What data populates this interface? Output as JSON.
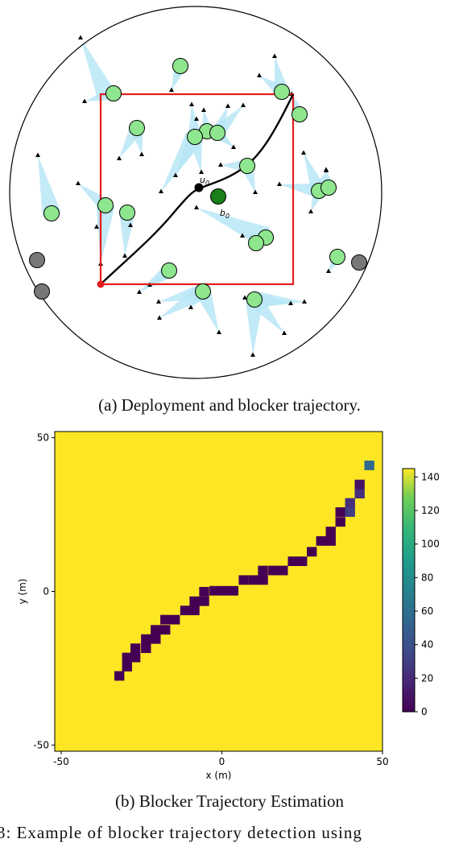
{
  "figure_a": {
    "caption": "(a) Deployment and blocker trajectory.",
    "labels": {
      "user": "u",
      "user_sub": "0",
      "bs": "b",
      "bs_sub": "0"
    },
    "colors": {
      "region": "#e51c1c",
      "trajectory": "#000000",
      "bs": "#8ee68e",
      "bs_target": "#1a7f1a",
      "bs_inactive": "#777777",
      "beam": "#b9e6f6"
    }
  },
  "figure_b": {
    "caption": "(b) Blocker Trajectory Estimation",
    "figure_caption_partial": "3: Example of blocker trajectory detection using"
  },
  "chart_data": {
    "type": "heatmap",
    "title": "",
    "xlabel": "x (m)",
    "ylabel": "y (m)",
    "xlim": [
      -52,
      50
    ],
    "ylim": [
      -52,
      52
    ],
    "x_ticks": [
      -50,
      0,
      50
    ],
    "y_ticks": [
      50,
      0,
      -50
    ],
    "colorbar": {
      "min": 0,
      "max": 145,
      "ticks": [
        0,
        20,
        40,
        60,
        80,
        100,
        120,
        140
      ],
      "colormap": "viridis"
    },
    "background_value": 145,
    "cell_size_m": 3.1,
    "cells": [
      {
        "x": -31.9,
        "y": -27.5,
        "v": 0
      },
      {
        "x": -29.5,
        "y": -24.5,
        "v": 0
      },
      {
        "x": -29.5,
        "y": -21.5,
        "v": 0
      },
      {
        "x": -26.9,
        "y": -21.5,
        "v": 0
      },
      {
        "x": -26.9,
        "y": -18.5,
        "v": 0
      },
      {
        "x": -23.6,
        "y": -18.5,
        "v": 0
      },
      {
        "x": -23.6,
        "y": -15.5,
        "v": 0
      },
      {
        "x": -20.6,
        "y": -15.5,
        "v": 0
      },
      {
        "x": -20.6,
        "y": -12.5,
        "v": 0
      },
      {
        "x": -17.6,
        "y": -12.5,
        "v": 0
      },
      {
        "x": -17.6,
        "y": -9.2,
        "v": 0
      },
      {
        "x": -14.6,
        "y": -9.2,
        "v": 0
      },
      {
        "x": -11.4,
        "y": -6.2,
        "v": 0
      },
      {
        "x": -8.5,
        "y": -6.2,
        "v": 0
      },
      {
        "x": -8.5,
        "y": -3.2,
        "v": 0
      },
      {
        "x": -5.5,
        "y": -3.2,
        "v": 0
      },
      {
        "x": -5.5,
        "y": -0.1,
        "v": 0
      },
      {
        "x": -2.3,
        "y": 0.2,
        "v": 0
      },
      {
        "x": 0.7,
        "y": 0.2,
        "v": 0
      },
      {
        "x": 3.6,
        "y": 0.2,
        "v": 0
      },
      {
        "x": 6.8,
        "y": 3.7,
        "v": 0
      },
      {
        "x": 9.9,
        "y": 3.7,
        "v": 0
      },
      {
        "x": 12.8,
        "y": 3.7,
        "v": 0
      },
      {
        "x": 12.8,
        "y": 6.8,
        "v": 0
      },
      {
        "x": 16,
        "y": 6.8,
        "v": 0
      },
      {
        "x": 19,
        "y": 6.8,
        "v": 0
      },
      {
        "x": 22.1,
        "y": 9.8,
        "v": 0
      },
      {
        "x": 25,
        "y": 9.8,
        "v": 0
      },
      {
        "x": 28,
        "y": 12.9,
        "v": 0
      },
      {
        "x": 30.9,
        "y": 16.4,
        "v": 0
      },
      {
        "x": 33.9,
        "y": 16.4,
        "v": 0
      },
      {
        "x": 33.9,
        "y": 19.5,
        "v": 0
      },
      {
        "x": 36.9,
        "y": 22.6,
        "v": 0
      },
      {
        "x": 36.9,
        "y": 25.8,
        "v": 0
      },
      {
        "x": 39.9,
        "y": 25.8,
        "v": 30
      },
      {
        "x": 39.9,
        "y": 28.8,
        "v": 22
      },
      {
        "x": 42.9,
        "y": 31.8,
        "v": 22
      },
      {
        "x": 42.9,
        "y": 34.8,
        "v": 8
      },
      {
        "x": 45.9,
        "y": 41,
        "v": 55
      }
    ]
  }
}
